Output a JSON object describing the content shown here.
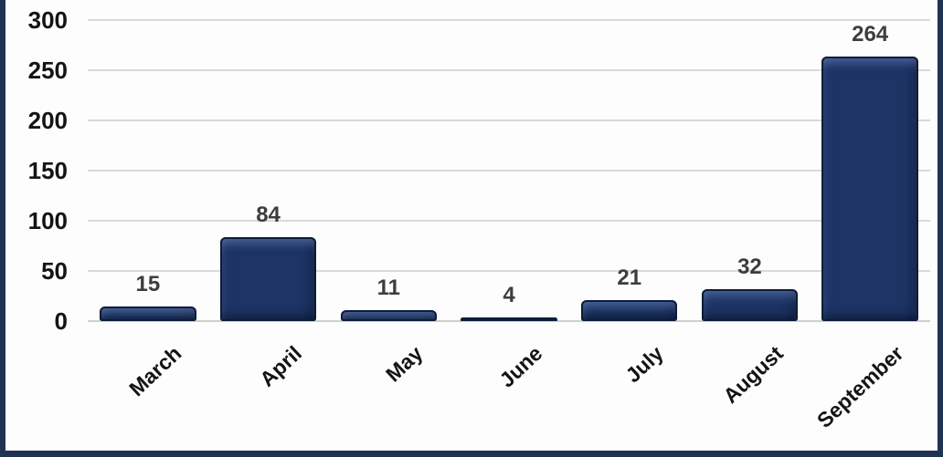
{
  "chart": {
    "background": "#fdfdfd",
    "frame_color": "#1e3450",
    "gridline_color": "#d9d9d9",
    "axis_line_color": "#cfcfcf",
    "bar_fill": "#1d3465",
    "bar_rim": "#0c1c3a",
    "value_label_color": "#3d3d3d",
    "axis_text_color": "#141414"
  },
  "chart_data": {
    "type": "bar",
    "categories": [
      "March",
      "April",
      "May",
      "June",
      "July",
      "August",
      "September"
    ],
    "values": [
      15,
      84,
      11,
      4,
      21,
      32,
      264
    ],
    "data_labels": [
      "15",
      "84",
      "11",
      "4",
      "21",
      "32",
      "264"
    ],
    "title": "",
    "xlabel": "",
    "ylabel": "",
    "ylim": [
      0,
      300
    ],
    "yticks": [
      0,
      50,
      100,
      150,
      200,
      250,
      300
    ],
    "grid": true,
    "legend": "none",
    "data_labels_shown": true,
    "x_labels_rotated_degrees": 43
  }
}
